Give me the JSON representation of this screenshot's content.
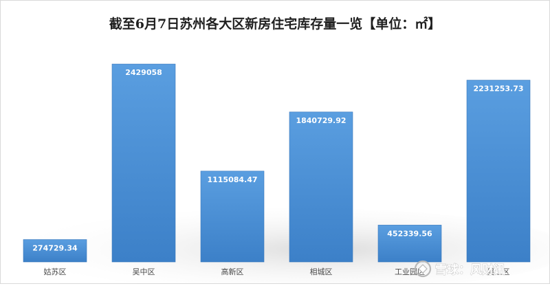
{
  "chart_data": {
    "type": "bar",
    "title": "截至6月7日苏州各大区新房住宅库存量一览【单位：㎡】",
    "categories": [
      "姑苏区",
      "吴中区",
      "高新区",
      "相城区",
      "工业园区",
      "吴江区"
    ],
    "values": [
      274729.34,
      2429058,
      1115084.47,
      1840729.92,
      452339.56,
      2231253.73
    ],
    "value_labels": [
      "274729.34",
      "2429058",
      "1115084.47",
      "1840729.92",
      "452339.56",
      "2231253.73"
    ],
    "xlabel": "",
    "ylabel": "",
    "ylim": [
      0,
      2700000
    ],
    "grid": false,
    "legend": "none",
    "bar_color": "#4a8fd3"
  },
  "watermark": {
    "text": "雪球：风财讯"
  }
}
